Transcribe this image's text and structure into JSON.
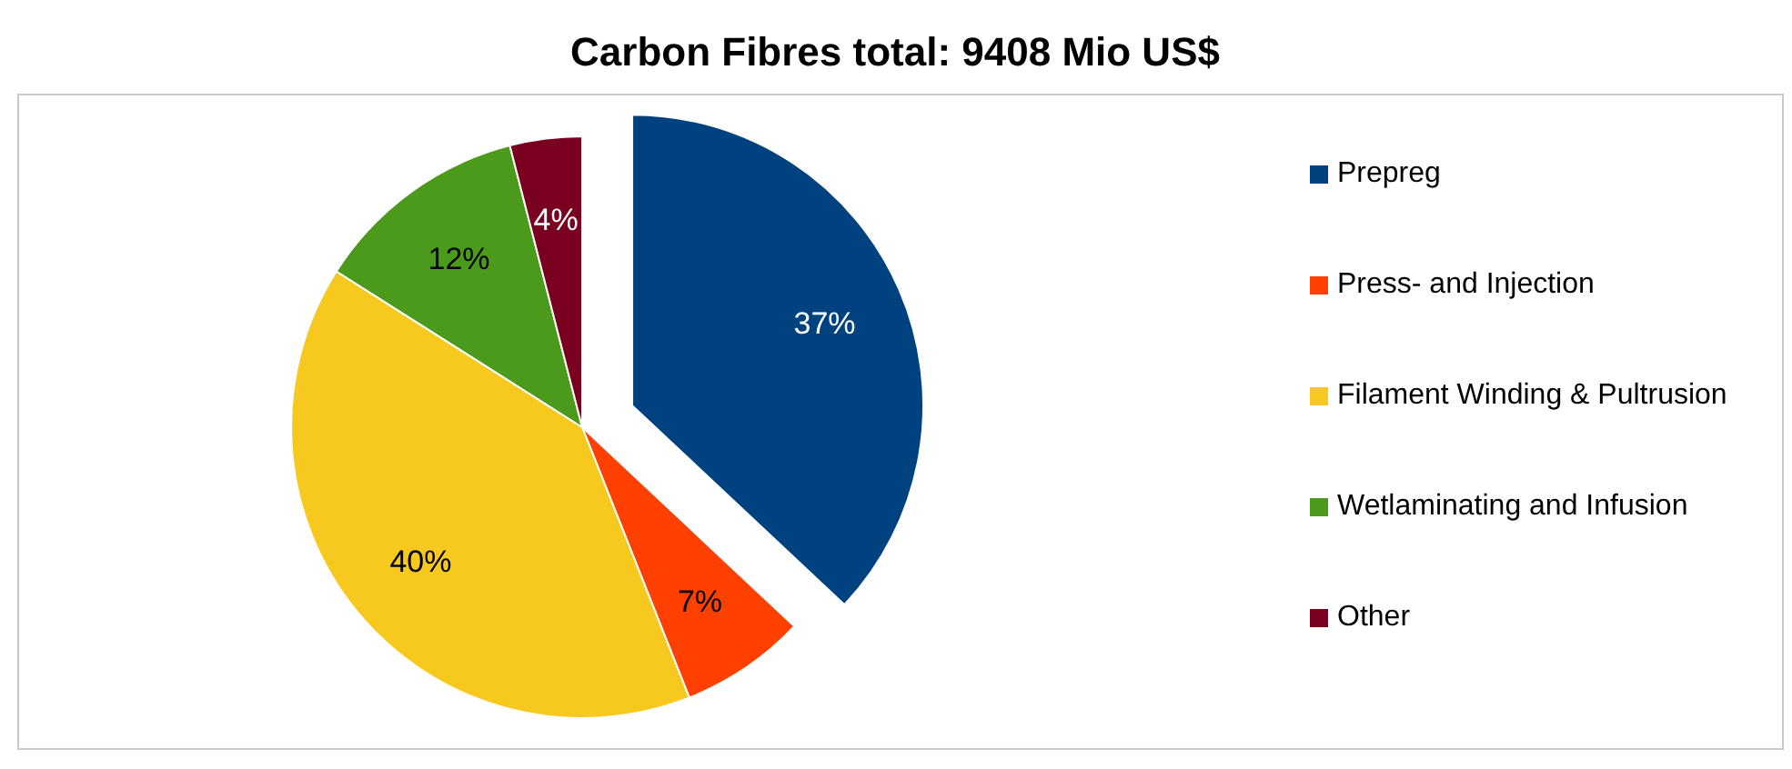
{
  "chart_data": {
    "type": "pie",
    "title": "Carbon Fibres total: 9408 Mio US$",
    "categories": [
      "Prepreg",
      "Press- and Injection",
      "Filament Winding & Pultrusion",
      "Wetlaminating and Infusion",
      "Other"
    ],
    "values": [
      37,
      7,
      40,
      12,
      4
    ],
    "colors": [
      "#00427f",
      "#ff4000",
      "#f7c81e",
      "#4b9a1c",
      "#7a0020"
    ],
    "value_labels": [
      "37%",
      "7%",
      "40%",
      "12%",
      "4%"
    ],
    "legend": "right"
  }
}
